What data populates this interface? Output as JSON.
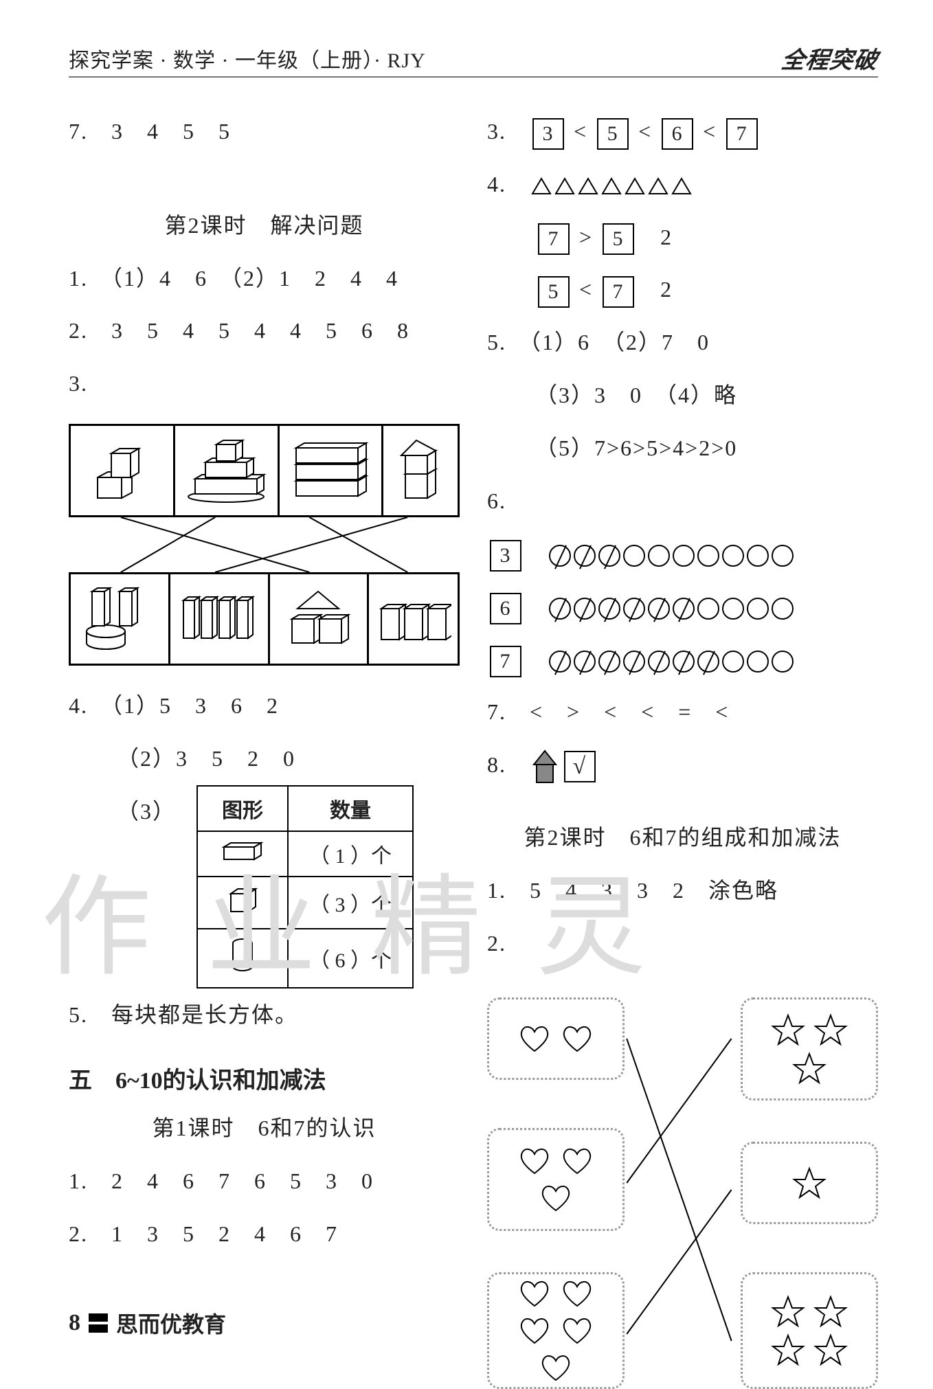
{
  "header": {
    "left": "探究学案 · 数学 · 一年级（上册）· RJY",
    "right": "全程突破"
  },
  "left": {
    "l7": "7.　3　4　5　5",
    "s2title": "第2课时　解决问题",
    "s2_1": "1.　（1）4　6　（2）1　2　4　4",
    "s2_2": "2.　3　5　4　5　4　4　5　6　8",
    "s2_3": "3.",
    "s2_4_1": "4.　（1）5　3　6　2",
    "s2_4_2": "（2）3　5　2　0",
    "s2_4_3": "（3）",
    "tbl": {
      "h1": "图形",
      "h2": "数量",
      "r1": "（ 1 ）个",
      "r2": "（ 3 ）个",
      "r3": "（ 6 ）个"
    },
    "s2_5": "5.　每块都是长方体。",
    "unit5": "五　6~10的认识和加减法",
    "u5_s1": "第1课时　6和7的认识",
    "u5_1": "1.　2　4　6　7　6　5　3　0",
    "u5_2": "2.　1　3　5　2　4　6　7"
  },
  "right": {
    "r3": {
      "a": "3",
      "b": "5",
      "c": "6",
      "d": "7"
    },
    "r4": {
      "tri_count": 7,
      "line2a": "7",
      "line2b": "5",
      "line2c": "2",
      "line3a": "5",
      "line3b": "7",
      "line3c": "2"
    },
    "r5_1": "5.　（1）6　（2）7　0",
    "r5_2": "（3）3　0　（4）略",
    "r5_3": "（5）7>6>5>4>2>0",
    "r6": "6.",
    "r6rows": [
      {
        "n": "3",
        "slashed": 3,
        "open": 7
      },
      {
        "n": "6",
        "slashed": 6,
        "open": 4
      },
      {
        "n": "7",
        "slashed": 7,
        "open": 3
      }
    ],
    "r7": "7.　<　>　<　<　=　<",
    "r8": "8.",
    "s2title": "第2课时　6和7的组成和加减法",
    "s2_1": "1.　5　4　3　3　2　涂色略",
    "s2_2": "2.",
    "hearts": [
      2,
      3,
      5
    ],
    "stars": [
      3,
      1,
      4
    ]
  },
  "watermark": "作 业 精 灵",
  "footer": {
    "page": "8",
    "brand": "思而优教育"
  }
}
